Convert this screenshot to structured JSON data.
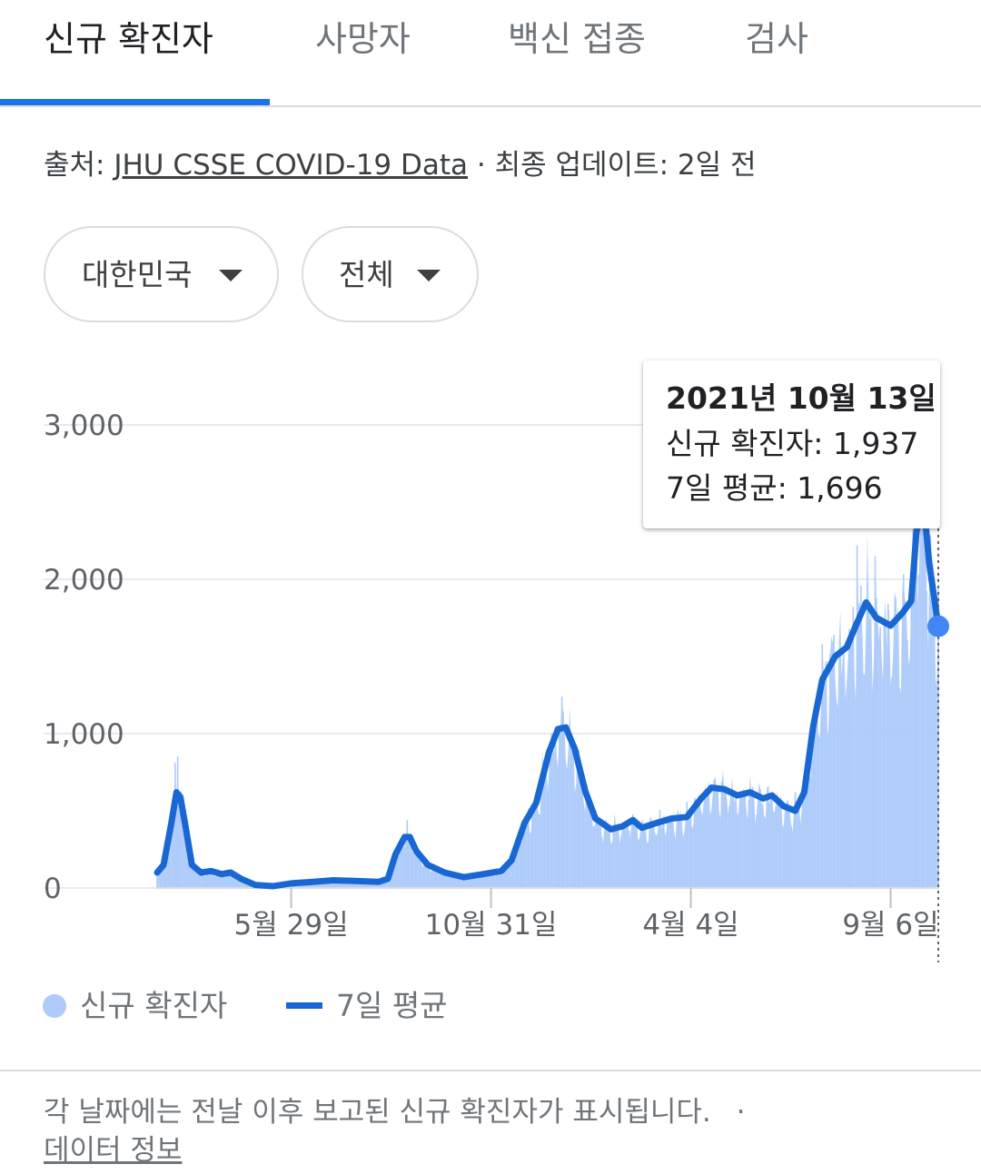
{
  "tabs": [
    {
      "label": "신규 확진자",
      "active": true
    },
    {
      "label": "사망자",
      "active": false
    },
    {
      "label": "백신 접종",
      "active": false
    },
    {
      "label": "검사",
      "active": false
    }
  ],
  "source": {
    "prefix": "출처:",
    "link": "JHU CSSE COVID-19 Data",
    "sep": "·",
    "update": "최종 업데이트: 2일 전"
  },
  "filters": {
    "region": "대한민국",
    "scope": "전체"
  },
  "tooltip": {
    "date": "2021년 10월 13일",
    "new_label": "신규 확진자:",
    "new_value": "1,937",
    "avg_label": "7일 평균:",
    "avg_value": "1,696"
  },
  "legend": {
    "bars": "신규 확진자",
    "line": "7일 평균"
  },
  "footnote": {
    "text": "각 날짜에는 전날 이후 보고된 신규 확진자가 표시됩니다.",
    "sep": "·",
    "link": "데이터 정보"
  },
  "colors": {
    "bars": "#aecbfa",
    "line": "#1967d2",
    "dot": "#4285f4",
    "grid": "#e8eaed",
    "accent": "#1a73e8"
  },
  "chart_data": {
    "type": "bar",
    "series_names": [
      "신규 확진자",
      "7일 평균"
    ],
    "x_start": "2020-02-15",
    "x_end": "2021-10-13",
    "ylim": [
      0,
      3000
    ],
    "yticks": [
      0,
      1000,
      2000,
      3000
    ],
    "ytick_labels": [
      "0",
      "1,000",
      "2,000",
      "3,000"
    ],
    "xticks": [
      {
        "date": "2020-05-29",
        "label": "5월 29일"
      },
      {
        "date": "2020-10-31",
        "label": "10월 31일"
      },
      {
        "date": "2021-04-04",
        "label": "4월 4일"
      },
      {
        "date": "2021-09-06",
        "label": "9월 6일"
      }
    ],
    "avg_points": [
      [
        "2020-02-15",
        100
      ],
      [
        "2020-02-20",
        150
      ],
      [
        "2020-02-26",
        420
      ],
      [
        "2020-03-01",
        620
      ],
      [
        "2020-03-04",
        590
      ],
      [
        "2020-03-08",
        400
      ],
      [
        "2020-03-13",
        150
      ],
      [
        "2020-03-20",
        100
      ],
      [
        "2020-03-28",
        110
      ],
      [
        "2020-04-05",
        90
      ],
      [
        "2020-04-12",
        100
      ],
      [
        "2020-04-20",
        60
      ],
      [
        "2020-05-01",
        20
      ],
      [
        "2020-05-15",
        12
      ],
      [
        "2020-05-29",
        30
      ],
      [
        "2020-06-15",
        40
      ],
      [
        "2020-07-01",
        50
      ],
      [
        "2020-07-20",
        45
      ],
      [
        "2020-08-05",
        40
      ],
      [
        "2020-08-12",
        60
      ],
      [
        "2020-08-18",
        220
      ],
      [
        "2020-08-25",
        330
      ],
      [
        "2020-08-29",
        330
      ],
      [
        "2020-09-03",
        240
      ],
      [
        "2020-09-12",
        150
      ],
      [
        "2020-09-25",
        100
      ],
      [
        "2020-10-10",
        70
      ],
      [
        "2020-10-25",
        90
      ],
      [
        "2020-11-08",
        110
      ],
      [
        "2020-11-16",
        180
      ],
      [
        "2020-11-26",
        420
      ],
      [
        "2020-12-05",
        550
      ],
      [
        "2020-12-15",
        880
      ],
      [
        "2020-12-22",
        1030
      ],
      [
        "2020-12-28",
        1040
      ],
      [
        "2021-01-04",
        900
      ],
      [
        "2021-01-12",
        630
      ],
      [
        "2021-01-20",
        450
      ],
      [
        "2021-02-01",
        380
      ],
      [
        "2021-02-10",
        400
      ],
      [
        "2021-02-18",
        440
      ],
      [
        "2021-02-25",
        390
      ],
      [
        "2021-03-08",
        420
      ],
      [
        "2021-03-20",
        450
      ],
      [
        "2021-04-01",
        460
      ],
      [
        "2021-04-12",
        580
      ],
      [
        "2021-04-20",
        650
      ],
      [
        "2021-04-30",
        640
      ],
      [
        "2021-05-10",
        600
      ],
      [
        "2021-05-20",
        620
      ],
      [
        "2021-05-30",
        580
      ],
      [
        "2021-06-06",
        600
      ],
      [
        "2021-06-15",
        530
      ],
      [
        "2021-06-24",
        500
      ],
      [
        "2021-07-01",
        620
      ],
      [
        "2021-07-08",
        1050
      ],
      [
        "2021-07-15",
        1350
      ],
      [
        "2021-07-25",
        1500
      ],
      [
        "2021-08-03",
        1560
      ],
      [
        "2021-08-10",
        1700
      ],
      [
        "2021-08-18",
        1850
      ],
      [
        "2021-08-26",
        1750
      ],
      [
        "2021-09-06",
        1700
      ],
      [
        "2021-09-15",
        1780
      ],
      [
        "2021-09-22",
        1860
      ],
      [
        "2021-09-26",
        2300
      ],
      [
        "2021-10-01",
        2550
      ],
      [
        "2021-10-06",
        2100
      ],
      [
        "2021-10-13",
        1696
      ]
    ],
    "daily_peaks": [
      [
        "2020-02-29",
        810
      ],
      [
        "2020-03-02",
        850
      ],
      [
        "2020-08-27",
        440
      ],
      [
        "2020-12-25",
        1240
      ],
      [
        "2021-07-24",
        1640
      ],
      [
        "2021-08-11",
        2220
      ],
      [
        "2021-08-25",
        2150
      ],
      [
        "2021-09-24",
        3270
      ],
      [
        "2021-09-26",
        3200
      ],
      [
        "2021-10-13",
        1937
      ]
    ]
  }
}
